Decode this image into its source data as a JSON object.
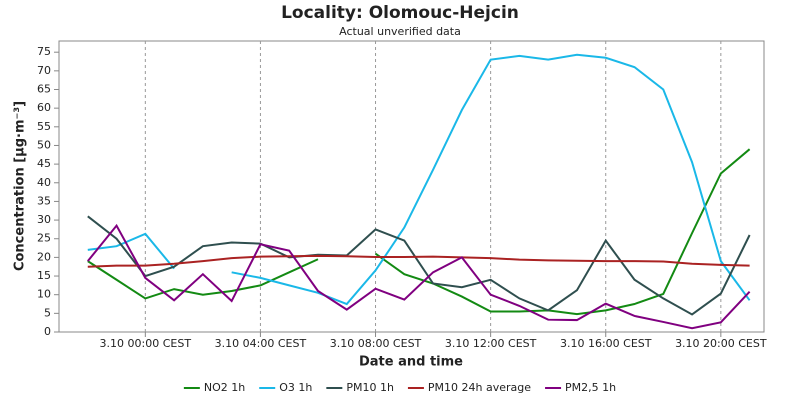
{
  "chart_data": {
    "type": "line",
    "title": "Locality: Olomouc-Hejcin",
    "subtitle": "Actual unverified data",
    "x_label": "Date and time",
    "y_label": "Concentration [µg·m⁻³]",
    "x": [
      -2,
      -1,
      0,
      1,
      2,
      3,
      4,
      5,
      6,
      7,
      8,
      9,
      10,
      11,
      12,
      13,
      14,
      15,
      16,
      17,
      18,
      19,
      20,
      21
    ],
    "xlim": [
      -3,
      21.5
    ],
    "xticks": [
      {
        "value": 0,
        "label": "3.10 00:00 CEST"
      },
      {
        "value": 4,
        "label": "3.10 04:00 CEST"
      },
      {
        "value": 8,
        "label": "3.10 08:00 CEST"
      },
      {
        "value": 12,
        "label": "3.10 12:00 CEST"
      },
      {
        "value": 16,
        "label": "3.10 16:00 CEST"
      },
      {
        "value": 20,
        "label": "3.10 20:00 CEST"
      }
    ],
    "ylim": [
      0,
      78
    ],
    "yticks": [
      0,
      5,
      10,
      15,
      20,
      25,
      30,
      35,
      40,
      45,
      50,
      55,
      60,
      65,
      70,
      75
    ],
    "grid": true,
    "legend": "bottom",
    "series": [
      {
        "name": "NO2 1h",
        "color": "#138a13",
        "values": [
          19,
          14,
          9,
          11.5,
          10,
          11,
          12.5,
          16,
          19.5,
          null,
          21,
          15.5,
          13,
          9.5,
          5.5,
          5.5,
          5.8,
          4.8,
          5.8,
          7.5,
          10.2,
          26.5,
          42.5,
          49
        ]
      },
      {
        "name": "O3 1h",
        "color": "#1ab8e8",
        "values": [
          22,
          23,
          26.3,
          17,
          null,
          16,
          14.5,
          12.5,
          10.5,
          7.5,
          16.5,
          28,
          43.5,
          59.5,
          73,
          74,
          73,
          74.3,
          73.5,
          71,
          65,
          45.5,
          19,
          8.5
        ]
      },
      {
        "name": "PM10 1h",
        "color": "#2f4f4f",
        "values": [
          31,
          25,
          15,
          17.5,
          23,
          24,
          23.7,
          20,
          20.7,
          20.5,
          27.5,
          24.5,
          13,
          12,
          14,
          9,
          5.8,
          11.2,
          24.5,
          14,
          9,
          4.7,
          10.3,
          26
        ]
      },
      {
        "name": "PM10 24h average",
        "color": "#aa2222",
        "values": [
          17.5,
          17.8,
          17.8,
          18.3,
          19,
          19.8,
          20.2,
          20.3,
          20.4,
          20.3,
          20.1,
          20.1,
          20.2,
          20,
          19.8,
          19.4,
          19.2,
          19.1,
          19,
          19,
          18.9,
          18.3,
          18,
          17.8
        ]
      },
      {
        "name": "PM2,5 1h",
        "color": "#800080",
        "values": [
          19,
          28.5,
          14.5,
          8.5,
          15.5,
          8.3,
          23.5,
          21.8,
          11,
          6,
          11.6,
          8.7,
          16,
          20,
          10,
          7,
          3.3,
          3.2,
          7.6,
          4.3,
          2.7,
          1,
          2.6,
          10.8
        ]
      }
    ]
  }
}
